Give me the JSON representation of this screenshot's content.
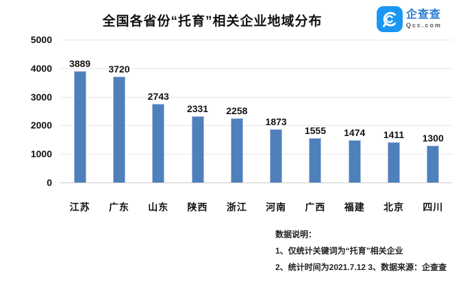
{
  "chart_data": {
    "type": "bar",
    "title": "全国各省份“托育”相关企业地域分布",
    "categories": [
      "江苏",
      "广东",
      "山东",
      "陕西",
      "浙江",
      "河南",
      "广西",
      "福建",
      "北京",
      "四川"
    ],
    "values": [
      3889,
      3720,
      2743,
      2331,
      2258,
      1873,
      1555,
      1474,
      1411,
      1300
    ],
    "xlabel": "",
    "ylabel": "",
    "ylim": [
      0,
      5000
    ],
    "yticks": [
      0,
      1000,
      2000,
      3000,
      4000,
      5000
    ],
    "grid": "horizontal",
    "legend": "none",
    "bar_color": "#4e80bc"
  },
  "logo": {
    "icon": "qcc-magnifier-icon",
    "name": "企查查",
    "domain": "Qcc.com",
    "icon_color": "#1a97f5",
    "name_color": "#2878d0",
    "domain_color": "#555555"
  },
  "notes": {
    "title": "数据说明：",
    "line1": "1、仅统计关键词为“托育”相关企业",
    "line2": "2、统计时间为2021.7.12 3、数据来源：企查查"
  }
}
